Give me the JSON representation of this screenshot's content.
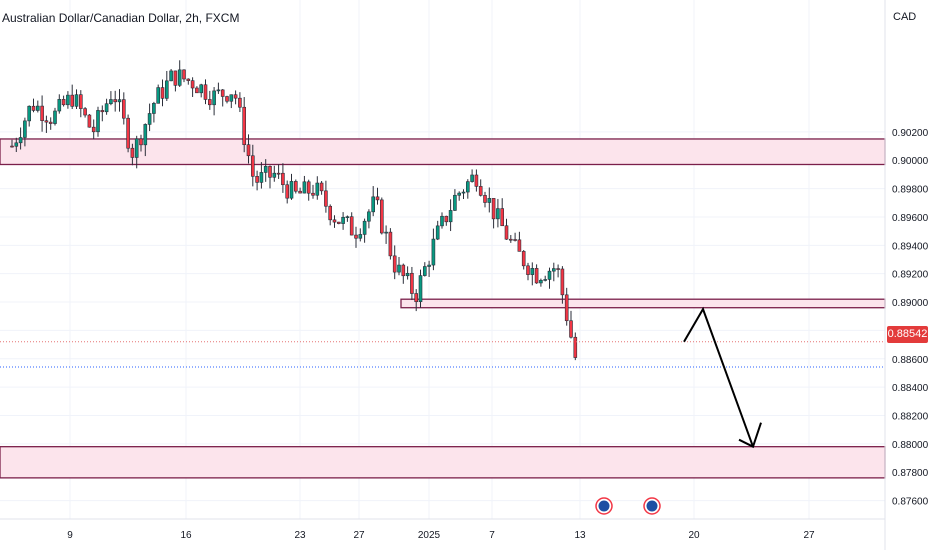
{
  "header": {
    "title": "Australian Dollar/Canadian Dollar, 2h, FXCM",
    "currency": "CAD"
  },
  "last_price": "0.88542",
  "colors": {
    "up": "#089981",
    "down": "#f23645",
    "candle_outline": "#2a2e39",
    "zone_fill": "#fce4ec",
    "zone_border": "#7a1f4a",
    "last_price": "#e33b3b",
    "grid": "#f0f3fa",
    "arrow": "#000000"
  },
  "chart_data": {
    "type": "candlestick",
    "title": "Australian Dollar/Canadian Dollar, 2h, FXCM",
    "ylabel": "CAD",
    "ylim": [
      0.8747,
      0.9113
    ],
    "y_ticks": [
      "0.90200",
      "0.90000",
      "0.89800",
      "0.89600",
      "0.89400",
      "0.89200",
      "0.89000",
      "0.88800",
      "0.88600",
      "0.88400",
      "0.88200",
      "0.88000",
      "0.87800",
      "0.87600"
    ],
    "x_ticks": [
      "9",
      "16",
      "23",
      "27",
      "2025",
      "7",
      "13",
      "20",
      "27"
    ],
    "grid": true,
    "price_series": [
      {
        "x": "3",
        "price": 0.901
      },
      {
        "x": "4",
        "price": 0.904
      },
      {
        "x": "5",
        "price": 0.903
      },
      {
        "x": "6",
        "price": 0.9045
      },
      {
        "x": "9",
        "price": 0.902
      },
      {
        "x": "10",
        "price": 0.905
      },
      {
        "x": "11",
        "price": 0.9005
      },
      {
        "x": "12",
        "price": 0.904
      },
      {
        "x": "13",
        "price": 0.906
      },
      {
        "x": "16",
        "price": 0.9055
      },
      {
        "x": "17",
        "price": 0.9045
      },
      {
        "x": "18",
        "price": 0.905
      },
      {
        "x": "19",
        "price": 0.8985
      },
      {
        "x": "20",
        "price": 0.899
      },
      {
        "x": "23",
        "price": 0.8975
      },
      {
        "x": "24",
        "price": 0.898
      },
      {
        "x": "26",
        "price": 0.896
      },
      {
        "x": "27",
        "price": 0.895
      },
      {
        "x": "30",
        "price": 0.897
      },
      {
        "x": "31",
        "price": 0.8925
      },
      {
        "x": "2025",
        "price": 0.8905
      },
      {
        "x": "2",
        "price": 0.8945
      },
      {
        "x": "3",
        "price": 0.8975
      },
      {
        "x": "6",
        "price": 0.899
      },
      {
        "x": "7",
        "price": 0.896
      },
      {
        "x": "8",
        "price": 0.8935
      },
      {
        "x": "9",
        "price": 0.892
      },
      {
        "x": "10",
        "price": 0.8925
      },
      {
        "x": "13",
        "price": 0.8855
      }
    ],
    "zones": [
      {
        "from": 0.8997,
        "to": 0.9015
      },
      {
        "from": 0.8896,
        "to": 0.8902
      },
      {
        "from": 0.8776,
        "to": 0.8798
      }
    ],
    "last_price": 0.88542,
    "reference_line": 0.8872,
    "projection": [
      {
        "x": "20",
        "price": 0.8872
      },
      {
        "x": "20",
        "price": 0.8895
      },
      {
        "x": "23",
        "price": 0.8798
      }
    ]
  }
}
